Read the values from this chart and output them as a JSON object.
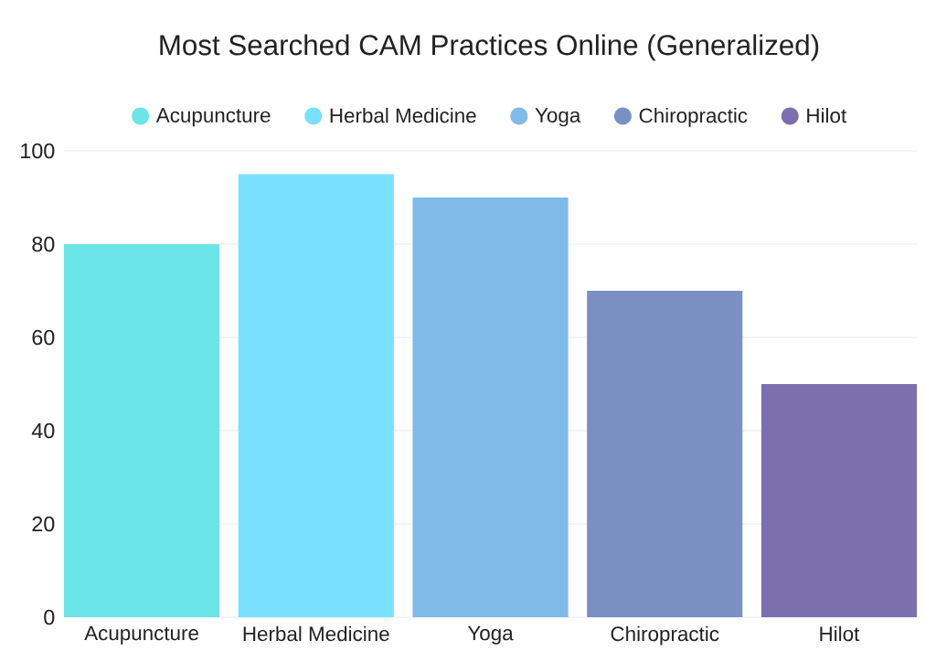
{
  "chart_data": {
    "type": "bar",
    "title": "Most Searched CAM Practices Online (Generalized)",
    "categories": [
      "Acupuncture",
      "Herbal Medicine",
      "Yoga",
      "Chiropractic",
      "Hilot"
    ],
    "series": [
      {
        "name": "Acupuncture",
        "color": "#6ce5e8",
        "values": [
          80,
          null,
          null,
          null,
          null
        ]
      },
      {
        "name": "Herbal Medicine",
        "color": "#7ae0ff",
        "values": [
          null,
          95,
          null,
          null,
          null
        ]
      },
      {
        "name": "Yoga",
        "color": "#7fbae8",
        "values": [
          null,
          null,
          90,
          null,
          null
        ]
      },
      {
        "name": "Chiropractic",
        "color": "#7b90c2",
        "values": [
          null,
          null,
          null,
          70,
          null
        ]
      },
      {
        "name": "Hilot",
        "color": "#7b6fad",
        "values": [
          null,
          null,
          null,
          null,
          50
        ]
      }
    ],
    "stacked": true,
    "ylim": [
      0,
      100
    ],
    "yticks": [
      0,
      20,
      40,
      60,
      80,
      100
    ],
    "grid": "y",
    "legend": "top"
  }
}
